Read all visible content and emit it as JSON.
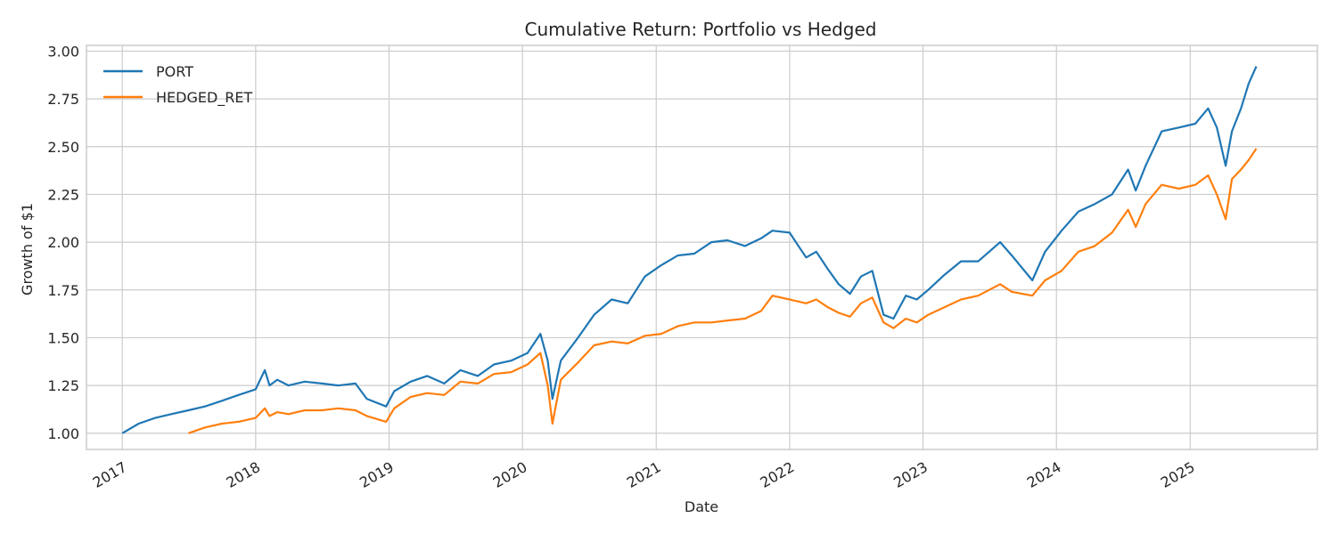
{
  "colors": {
    "port": "#1f77b4",
    "hedged": "#ff7f0e",
    "grid": "#cccccc",
    "text": "#262626"
  },
  "chart_data": {
    "type": "line",
    "title": "Cumulative Return: Portfolio vs Hedged",
    "xlabel": "Date",
    "ylabel": "Growth of $1",
    "xlim": [
      "2016-09-25",
      "2025-12-15"
    ],
    "ylim": [
      0.915,
      3.03
    ],
    "x_ticks": [
      "2017-01-01",
      "2018-01-01",
      "2019-01-01",
      "2020-01-01",
      "2021-01-01",
      "2022-01-01",
      "2023-01-01",
      "2024-01-01",
      "2025-01-01"
    ],
    "x_tick_labels": [
      "2017",
      "2018",
      "2019",
      "2020",
      "2021",
      "2022",
      "2023",
      "2024",
      "2025"
    ],
    "y_ticks": [
      1.0,
      1.25,
      1.5,
      1.75,
      2.0,
      2.25,
      2.5,
      2.75,
      3.0
    ],
    "y_tick_labels": [
      "1.00",
      "1.25",
      "1.50",
      "1.75",
      "2.00",
      "2.25",
      "2.50",
      "2.75",
      "3.00"
    ],
    "grid": true,
    "legend_position": "top-left",
    "series": [
      {
        "name": "PORT",
        "color": "#1f77b4",
        "x": [
          "2017-01-01",
          "2017-02-15",
          "2017-04-01",
          "2017-05-15",
          "2017-07-01",
          "2017-08-15",
          "2017-10-01",
          "2017-11-15",
          "2018-01-01",
          "2018-01-26",
          "2018-02-08",
          "2018-03-01",
          "2018-04-01",
          "2018-05-15",
          "2018-07-01",
          "2018-08-15",
          "2018-10-01",
          "2018-11-01",
          "2018-12-24",
          "2019-01-15",
          "2019-03-01",
          "2019-04-15",
          "2019-06-01",
          "2019-07-15",
          "2019-09-01",
          "2019-10-15",
          "2019-12-01",
          "2020-01-15",
          "2020-02-19",
          "2020-03-10",
          "2020-03-23",
          "2020-04-15",
          "2020-06-01",
          "2020-07-15",
          "2020-09-01",
          "2020-10-15",
          "2020-12-01",
          "2021-01-15",
          "2021-03-01",
          "2021-04-15",
          "2021-06-01",
          "2021-07-15",
          "2021-09-01",
          "2021-10-15",
          "2021-11-15",
          "2022-01-01",
          "2022-02-15",
          "2022-03-15",
          "2022-04-15",
          "2022-05-15",
          "2022-06-15",
          "2022-07-15",
          "2022-08-15",
          "2022-09-15",
          "2022-10-12",
          "2022-11-15",
          "2022-12-15",
          "2023-01-15",
          "2023-03-01",
          "2023-04-15",
          "2023-06-01",
          "2023-07-31",
          "2023-09-01",
          "2023-10-27",
          "2023-12-01",
          "2024-01-15",
          "2024-03-01",
          "2024-04-15",
          "2024-06-01",
          "2024-07-15",
          "2024-08-05",
          "2024-09-01",
          "2024-10-15",
          "2024-12-01",
          "2025-01-15",
          "2025-02-19",
          "2025-03-15",
          "2025-04-08",
          "2025-04-25",
          "2025-05-20",
          "2025-06-10",
          "2025-07-01"
        ],
        "y": [
          1.0,
          1.05,
          1.08,
          1.1,
          1.12,
          1.14,
          1.17,
          1.2,
          1.23,
          1.33,
          1.25,
          1.28,
          1.25,
          1.27,
          1.26,
          1.25,
          1.26,
          1.18,
          1.14,
          1.22,
          1.27,
          1.3,
          1.26,
          1.33,
          1.3,
          1.36,
          1.38,
          1.42,
          1.52,
          1.38,
          1.18,
          1.38,
          1.5,
          1.62,
          1.7,
          1.68,
          1.82,
          1.88,
          1.93,
          1.94,
          2.0,
          2.01,
          1.98,
          2.02,
          2.06,
          2.05,
          1.92,
          1.95,
          1.86,
          1.78,
          1.73,
          1.82,
          1.85,
          1.62,
          1.6,
          1.72,
          1.7,
          1.75,
          1.83,
          1.9,
          1.9,
          2.0,
          1.93,
          1.8,
          1.95,
          2.06,
          2.16,
          2.2,
          2.25,
          2.38,
          2.27,
          2.4,
          2.58,
          2.6,
          2.62,
          2.7,
          2.6,
          2.4,
          2.58,
          2.7,
          2.83,
          2.92
        ]
      },
      {
        "name": "HEDGED_RET",
        "color": "#ff7f0e",
        "x": [
          "2017-07-01",
          "2017-08-15",
          "2017-10-01",
          "2017-11-15",
          "2018-01-01",
          "2018-01-26",
          "2018-02-08",
          "2018-03-01",
          "2018-04-01",
          "2018-05-15",
          "2018-07-01",
          "2018-08-15",
          "2018-10-01",
          "2018-11-01",
          "2018-12-24",
          "2019-01-15",
          "2019-03-01",
          "2019-04-15",
          "2019-06-01",
          "2019-07-15",
          "2019-09-01",
          "2019-10-15",
          "2019-12-01",
          "2020-01-15",
          "2020-02-19",
          "2020-03-10",
          "2020-03-23",
          "2020-04-15",
          "2020-06-01",
          "2020-07-15",
          "2020-09-01",
          "2020-10-15",
          "2020-12-01",
          "2021-01-15",
          "2021-03-01",
          "2021-04-15",
          "2021-06-01",
          "2021-07-15",
          "2021-09-01",
          "2021-10-15",
          "2021-11-15",
          "2022-01-01",
          "2022-02-15",
          "2022-03-15",
          "2022-04-15",
          "2022-05-15",
          "2022-06-15",
          "2022-07-15",
          "2022-08-15",
          "2022-09-15",
          "2022-10-12",
          "2022-11-15",
          "2022-12-15",
          "2023-01-15",
          "2023-03-01",
          "2023-04-15",
          "2023-06-01",
          "2023-07-31",
          "2023-09-01",
          "2023-10-27",
          "2023-12-01",
          "2024-01-15",
          "2024-03-01",
          "2024-04-15",
          "2024-06-01",
          "2024-07-15",
          "2024-08-05",
          "2024-09-01",
          "2024-10-15",
          "2024-12-01",
          "2025-01-15",
          "2025-02-19",
          "2025-03-15",
          "2025-04-08",
          "2025-04-25",
          "2025-05-20",
          "2025-06-10",
          "2025-07-01"
        ],
        "y": [
          1.0,
          1.03,
          1.05,
          1.06,
          1.08,
          1.13,
          1.09,
          1.11,
          1.1,
          1.12,
          1.12,
          1.13,
          1.12,
          1.09,
          1.06,
          1.13,
          1.19,
          1.21,
          1.2,
          1.27,
          1.26,
          1.31,
          1.32,
          1.36,
          1.42,
          1.25,
          1.05,
          1.28,
          1.37,
          1.46,
          1.48,
          1.47,
          1.51,
          1.52,
          1.56,
          1.58,
          1.58,
          1.59,
          1.6,
          1.64,
          1.72,
          1.7,
          1.68,
          1.7,
          1.66,
          1.63,
          1.61,
          1.68,
          1.71,
          1.58,
          1.55,
          1.6,
          1.58,
          1.62,
          1.66,
          1.7,
          1.72,
          1.78,
          1.74,
          1.72,
          1.8,
          1.85,
          1.95,
          1.98,
          2.05,
          2.17,
          2.08,
          2.2,
          2.3,
          2.28,
          2.3,
          2.35,
          2.25,
          2.12,
          2.33,
          2.38,
          2.43,
          2.49
        ]
      }
    ]
  }
}
